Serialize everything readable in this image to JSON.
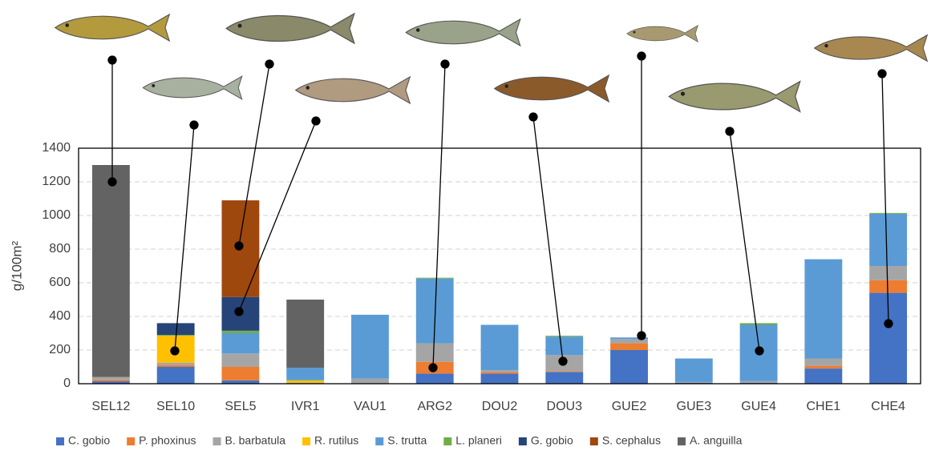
{
  "chart_data": {
    "type": "bar",
    "stacked": true,
    "y_label": "g/100m²",
    "categories": [
      "SEL12",
      "SEL10",
      "SEL5",
      "IVR1",
      "VAU1",
      "ARG2",
      "DOU2",
      "DOU3",
      "GUE2",
      "GUE3",
      "GUE4",
      "CHE1",
      "CHE4"
    ],
    "series": [
      {
        "name": "C. gobio",
        "color": "#4472c4",
        "values": [
          15,
          100,
          20,
          0,
          0,
          60,
          60,
          70,
          200,
          5,
          5,
          90,
          540
        ]
      },
      {
        "name": "P. phoxinus",
        "color": "#ed7d31",
        "values": [
          10,
          10,
          80,
          0,
          0,
          70,
          10,
          5,
          40,
          0,
          0,
          15,
          75
        ]
      },
      {
        "name": "B. barbatula",
        "color": "#a5a5a5",
        "values": [
          15,
          15,
          80,
          5,
          30,
          110,
          10,
          95,
          25,
          5,
          10,
          45,
          85
        ]
      },
      {
        "name": "R. rutilus",
        "color": "#ffc000",
        "values": [
          0,
          160,
          0,
          15,
          0,
          0,
          0,
          0,
          0,
          0,
          0,
          0,
          0
        ]
      },
      {
        "name": "S. trutta",
        "color": "#5b9bd5",
        "values": [
          0,
          0,
          120,
          75,
          380,
          385,
          270,
          110,
          10,
          140,
          335,
          590,
          310
        ]
      },
      {
        "name": "L. planeri",
        "color": "#70ad47",
        "values": [
          0,
          5,
          15,
          0,
          0,
          5,
          0,
          5,
          0,
          0,
          10,
          0,
          5
        ]
      },
      {
        "name": "G. gobio",
        "color": "#264478",
        "values": [
          0,
          70,
          200,
          0,
          0,
          0,
          0,
          0,
          0,
          0,
          0,
          0,
          0
        ]
      },
      {
        "name": "S. cephalus",
        "color": "#9e480e",
        "values": [
          0,
          0,
          575,
          0,
          0,
          0,
          0,
          0,
          0,
          0,
          0,
          0,
          0
        ]
      },
      {
        "name": "A. anguilla",
        "color": "#636363",
        "values": [
          1260,
          0,
          0,
          405,
          0,
          0,
          0,
          0,
          0,
          0,
          0,
          0,
          0
        ]
      }
    ],
    "ylim": [
      0,
      1400
    ],
    "yticks": [
      0,
      200,
      400,
      600,
      800,
      1000,
      1200,
      1400
    ],
    "grid": true,
    "legend": "bottom"
  }
}
